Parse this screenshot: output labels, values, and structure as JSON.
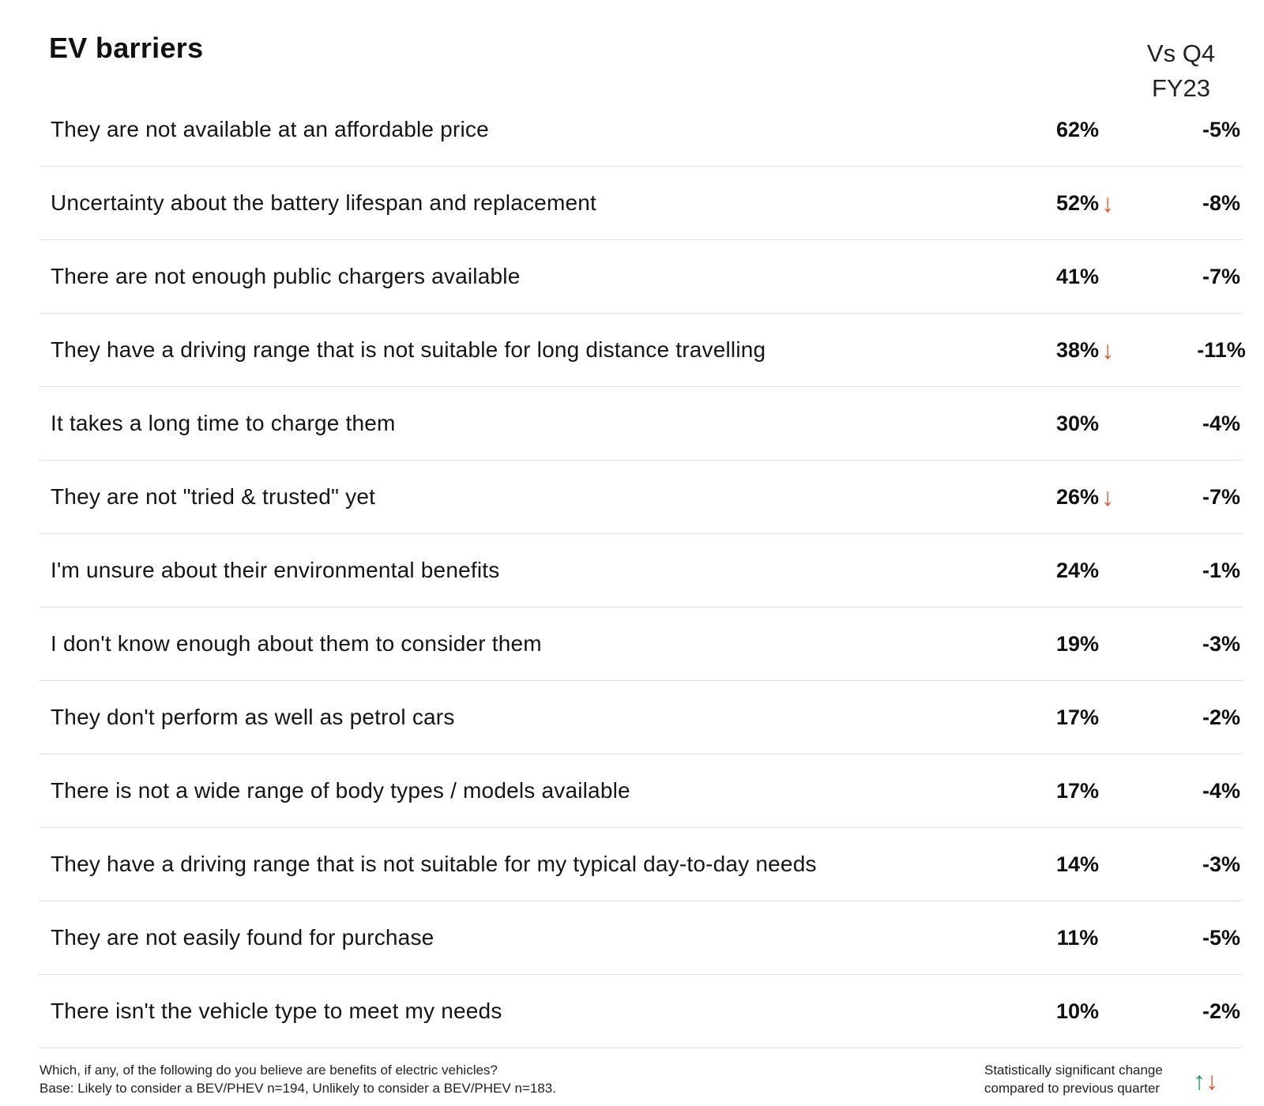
{
  "title": "EV barriers",
  "column_header": {
    "line1": "Vs Q4",
    "line2": "FY23"
  },
  "chart_data": {
    "type": "table",
    "title": "EV barriers",
    "columns": [
      "",
      "",
      "Vs Q4 FY23"
    ],
    "rows": [
      {
        "label": "They are not available at an affordable price",
        "value": "62%",
        "significant_down": false,
        "change": "-5%"
      },
      {
        "label": "Uncertainty about the battery lifespan and replacement",
        "value": "52%",
        "significant_down": true,
        "change": "-8%"
      },
      {
        "label": "There are not enough public chargers available",
        "value": "41%",
        "significant_down": false,
        "change": "-7%"
      },
      {
        "label": "They have a driving range that is not suitable for long distance travelling",
        "value": "38%",
        "significant_down": true,
        "change": "-11%"
      },
      {
        "label": "It takes a long time to charge them",
        "value": "30%",
        "significant_down": false,
        "change": "-4%"
      },
      {
        "label": "They are not \"tried & trusted\" yet",
        "value": "26%",
        "significant_down": true,
        "change": "-7%"
      },
      {
        "label": "I'm unsure about their environmental benefits",
        "value": "24%",
        "significant_down": false,
        "change": "-1%"
      },
      {
        "label": "I don't know enough about them to consider them",
        "value": "19%",
        "significant_down": false,
        "change": "-3%"
      },
      {
        "label": "They don't perform as well as petrol cars",
        "value": "17%",
        "significant_down": false,
        "change": "-2%"
      },
      {
        "label": "There is not a wide range of body types / models available",
        "value": "17%",
        "significant_down": false,
        "change": "-4%"
      },
      {
        "label": "They have a driving range that is not suitable for my typical day-to-day needs",
        "value": "14%",
        "significant_down": false,
        "change": "-3%"
      },
      {
        "label": "They are not easily found for purchase",
        "value": "11%",
        "significant_down": false,
        "change": "-5%"
      },
      {
        "label": "There isn't the vehicle type to meet my needs",
        "value": "10%",
        "significant_down": false,
        "change": "-2%"
      }
    ]
  },
  "footnote": {
    "question": "Which, if any, of the following do you believe are benefits of electric vehicles?",
    "base": "Base: Likely to consider a BEV/PHEV n=194, Unlikely to consider a BEV/PHEV n=183."
  },
  "legend": {
    "line1": "Statistically significant change",
    "line2": "compared to previous quarter",
    "up_arrow": "↑",
    "down_arrow": "↓",
    "up_color": "#1e9a6c",
    "down_color": "#e0542a"
  },
  "significant_down_arrow": "↓"
}
